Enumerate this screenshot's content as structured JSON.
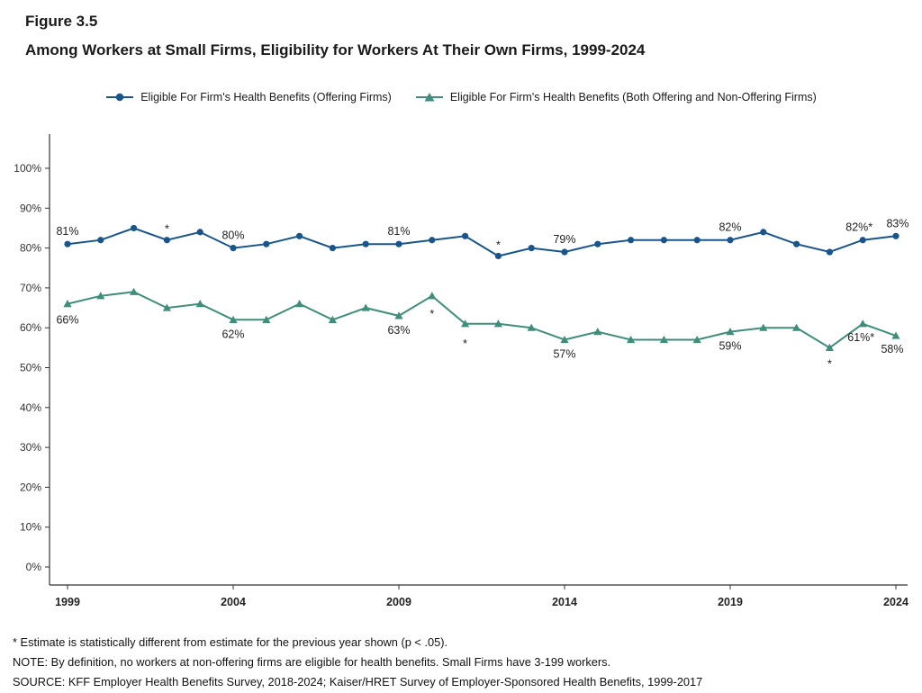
{
  "figure": {
    "number": "Figure 3.5",
    "title": "Among Workers at Small Firms, Eligibility for Workers At Their Own Firms, 1999-2024"
  },
  "legend": {
    "items": [
      {
        "label": "Eligible For Firm's Health Benefits (Offering Firms)",
        "color": "#17558c",
        "marker": "circle"
      },
      {
        "label": "Eligible For Firm's Health Benefits (Both Offering and Non-Offering Firms)",
        "color": "#3f8e7c",
        "marker": "triangle"
      }
    ]
  },
  "chart_data": {
    "type": "line",
    "title": "Among Workers at Small Firms, Eligibility for Workers At Their Own Firms, 1999-2024",
    "x": [
      1999,
      2000,
      2001,
      2002,
      2003,
      2004,
      2005,
      2006,
      2007,
      2008,
      2009,
      2010,
      2011,
      2012,
      2013,
      2014,
      2015,
      2016,
      2017,
      2018,
      2019,
      2020,
      2021,
      2022,
      2023,
      2024
    ],
    "xticks": [
      1999,
      2004,
      2009,
      2014,
      2019,
      2024
    ],
    "yticks": [
      0,
      10,
      20,
      30,
      40,
      50,
      60,
      70,
      80,
      90,
      100
    ],
    "ylim": [
      0,
      108
    ],
    "grid": false,
    "legend_position": "top",
    "series": [
      {
        "name": "Eligible For Firm's Health Benefits (Offering Firms)",
        "color": "#17558c",
        "marker": "circle",
        "values": [
          81,
          82,
          85,
          82,
          84,
          80,
          81,
          83,
          80,
          81,
          81,
          82,
          83,
          78,
          80,
          79,
          81,
          82,
          82,
          82,
          82,
          84,
          81,
          79,
          82,
          83
        ],
        "point_labels": [
          {
            "year": 1999,
            "text": "81%",
            "dx": 0,
            "dy": -10
          },
          {
            "year": 2004,
            "text": "80%",
            "dx": 0,
            "dy": -10
          },
          {
            "year": 2009,
            "text": "81%",
            "dx": 0,
            "dy": -10
          },
          {
            "year": 2014,
            "text": "79%",
            "dx": 0,
            "dy": -10
          },
          {
            "year": 2019,
            "text": "82%",
            "dx": 0,
            "dy": -10
          },
          {
            "year": 2023,
            "text": "82%*",
            "dx": -4,
            "dy": -10
          },
          {
            "year": 2024,
            "text": "83%",
            "dx": 2,
            "dy": -10
          }
        ],
        "asterisks": [
          {
            "year": 2002,
            "dy": -8
          },
          {
            "year": 2012,
            "dy": -8
          }
        ]
      },
      {
        "name": "Eligible For Firm's Health Benefits (Both Offering and Non-Offering Firms)",
        "color": "#3f8e7c",
        "marker": "triangle",
        "values": [
          66,
          68,
          69,
          65,
          66,
          62,
          62,
          66,
          62,
          65,
          63,
          68,
          61,
          61,
          60,
          57,
          59,
          57,
          57,
          57,
          59,
          60,
          60,
          55,
          61,
          58
        ],
        "point_labels": [
          {
            "year": 1999,
            "text": "66%",
            "dx": 0,
            "dy": 22
          },
          {
            "year": 2004,
            "text": "62%",
            "dx": 0,
            "dy": 20
          },
          {
            "year": 2009,
            "text": "63%",
            "dx": 0,
            "dy": 20
          },
          {
            "year": 2014,
            "text": "57%",
            "dx": 0,
            "dy": 20
          },
          {
            "year": 2019,
            "text": "59%",
            "dx": 0,
            "dy": 20
          },
          {
            "year": 2023,
            "text": "61%*",
            "dx": -2,
            "dy": 19
          },
          {
            "year": 2024,
            "text": "58%",
            "dx": -4,
            "dy": 19
          }
        ],
        "asterisks": [
          {
            "year": 2010,
            "dy": 24
          },
          {
            "year": 2011,
            "dy": 26
          },
          {
            "year": 2022,
            "dy": 22
          }
        ]
      }
    ]
  },
  "footnotes": [
    "* Estimate is statistically different from estimate for the previous year shown (p < .05).",
    "NOTE: By definition, no workers at non-offering firms are eligible for health benefits. Small Firms have 3-199 workers.",
    "SOURCE: KFF Employer Health Benefits Survey, 2018-2024; Kaiser/HRET Survey of Employer-Sponsored Health Benefits, 1999-2017"
  ]
}
